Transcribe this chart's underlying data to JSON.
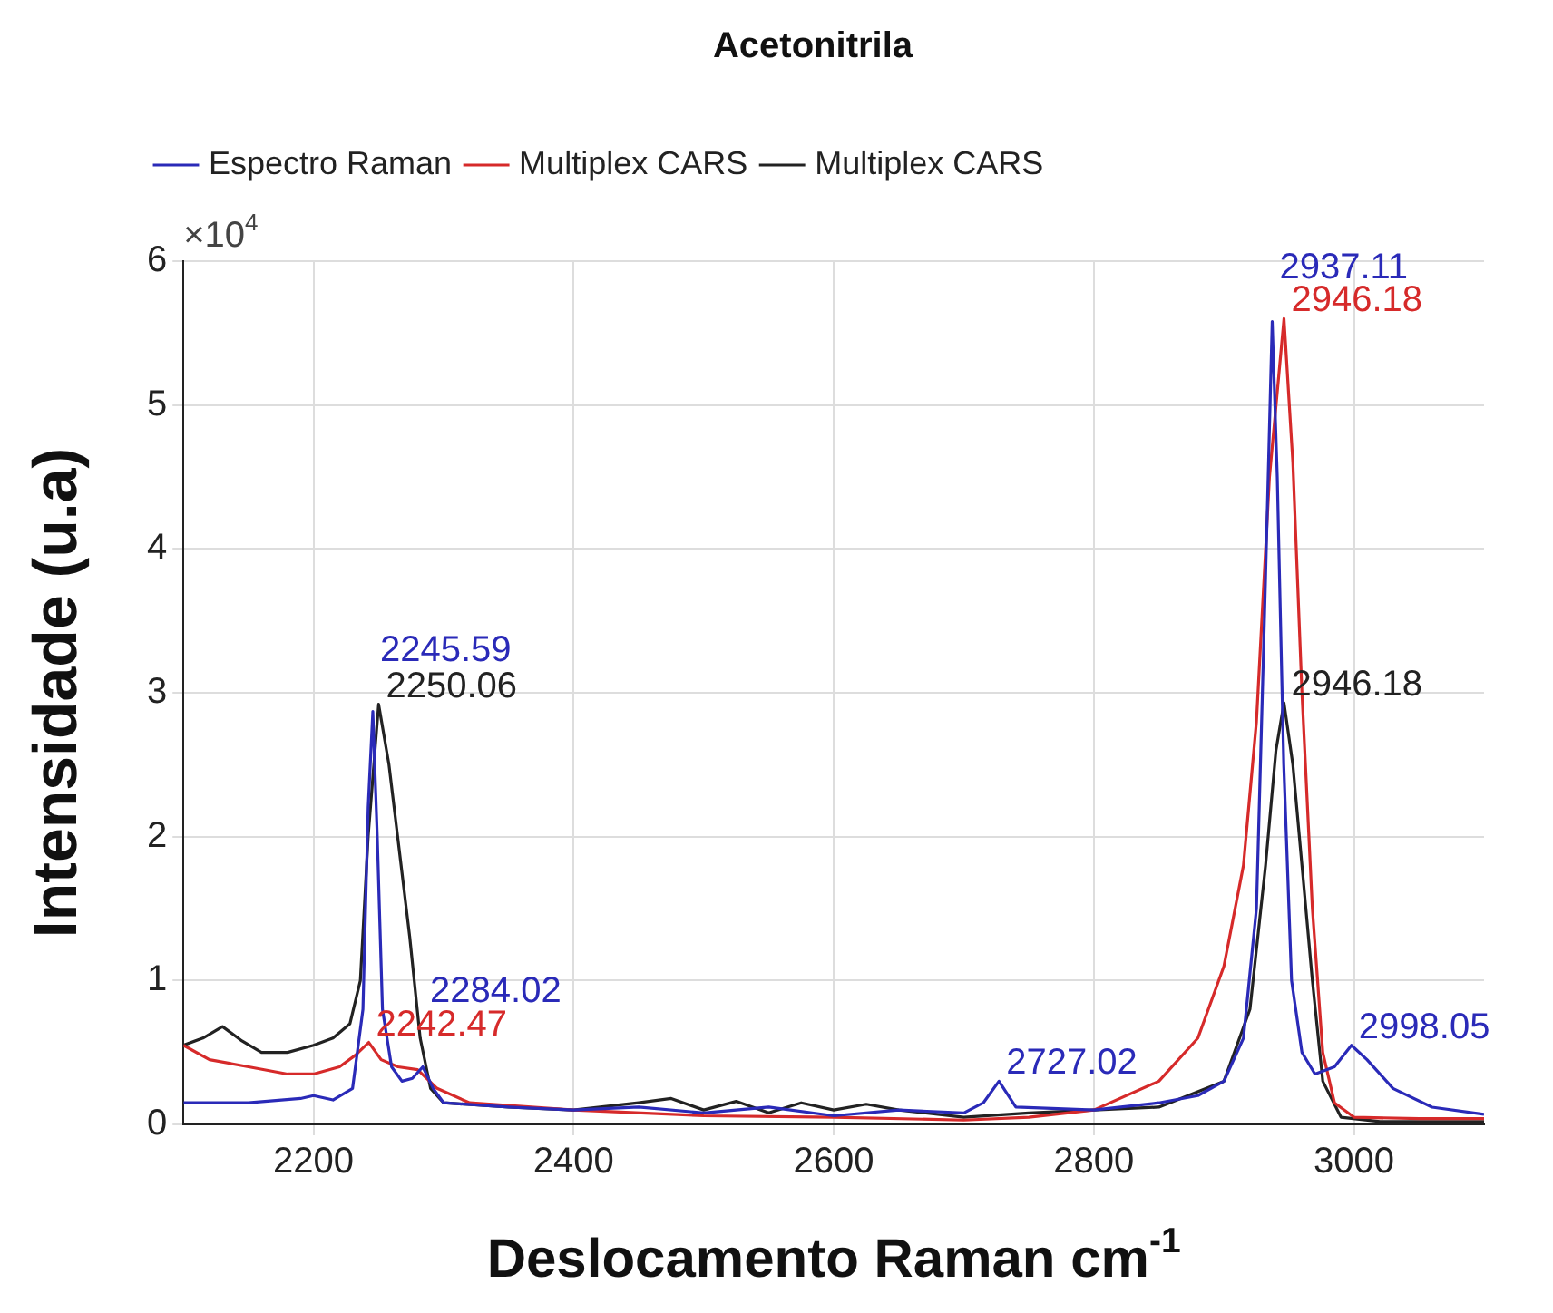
{
  "chart_data": {
    "type": "line",
    "title": "Acetonitrila",
    "xlabel": "Deslocamento Raman cm$^{-1}$",
    "ylabel": "Intensidade (u.a)",
    "xlim": [
      2100,
      3100
    ],
    "xticks": [
      2200,
      2400,
      2600,
      2800,
      3000
    ],
    "ylim": [
      0,
      6
    ],
    "yticks": [
      0,
      1,
      2,
      3,
      4,
      5,
      6
    ],
    "grid": true,
    "legend": "top left",
    "marker": "none",
    "line_style": "solid",
    "series": [
      {
        "name": "Espectro Raman",
        "color": "#2a2ab8",
        "x": [
          2100,
          2150,
          2190,
          2200,
          2215,
          2230,
          2238,
          2242,
          2245.59,
          2249,
          2253,
          2260,
          2268,
          2276,
          2284.02,
          2292,
          2300,
          2350,
          2400,
          2450,
          2500,
          2550,
          2600,
          2650,
          2700,
          2715,
          2727.02,
          2740,
          2800,
          2850,
          2880,
          2900,
          2915,
          2925,
          2932,
          2937.11,
          2941,
          2946,
          2952,
          2960,
          2970,
          2985,
          2998.05,
          3010,
          3030,
          3060,
          3100
        ],
        "values": [
          0.15,
          0.15,
          0.18,
          0.2,
          0.17,
          0.25,
          0.8,
          2.2,
          2.87,
          2.0,
          0.8,
          0.4,
          0.3,
          0.32,
          0.4,
          0.25,
          0.15,
          0.12,
          0.1,
          0.12,
          0.08,
          0.12,
          0.06,
          0.1,
          0.08,
          0.15,
          0.3,
          0.12,
          0.1,
          0.15,
          0.2,
          0.3,
          0.6,
          1.5,
          3.8,
          5.58,
          4.5,
          2.5,
          1.0,
          0.5,
          0.35,
          0.4,
          0.55,
          0.45,
          0.25,
          0.12,
          0.07
        ]
      },
      {
        "name": "Multiplex CARS",
        "color": "#d62a2a",
        "x": [
          2100,
          2120,
          2150,
          2180,
          2200,
          2220,
          2232,
          2242.47,
          2252,
          2265,
          2280,
          2295,
          2320,
          2400,
          2500,
          2600,
          2700,
          2750,
          2800,
          2850,
          2880,
          2900,
          2915,
          2925,
          2935,
          2946.18,
          2953,
          2960,
          2968,
          2976,
          2985,
          3000,
          3050,
          3100
        ],
        "values": [
          0.55,
          0.45,
          0.4,
          0.35,
          0.35,
          0.4,
          0.48,
          0.57,
          0.45,
          0.4,
          0.38,
          0.25,
          0.15,
          0.1,
          0.06,
          0.05,
          0.03,
          0.05,
          0.1,
          0.3,
          0.6,
          1.1,
          1.8,
          2.8,
          4.5,
          5.6,
          4.6,
          3.0,
          1.5,
          0.5,
          0.15,
          0.05,
          0.04,
          0.04
        ]
      },
      {
        "name": "Multiplex CARS",
        "color": "#222222",
        "x": [
          2100,
          2115,
          2130,
          2145,
          2160,
          2180,
          2200,
          2215,
          2228,
          2236,
          2242,
          2250.06,
          2258,
          2266,
          2274,
          2282,
          2290,
          2300,
          2350,
          2400,
          2450,
          2475,
          2500,
          2525,
          2550,
          2575,
          2600,
          2625,
          2650,
          2700,
          2750,
          2800,
          2850,
          2900,
          2920,
          2932,
          2940,
          2946.18,
          2953,
          2960,
          2968,
          2976,
          2990,
          3020,
          3100
        ],
        "values": [
          0.55,
          0.6,
          0.68,
          0.58,
          0.5,
          0.5,
          0.55,
          0.6,
          0.7,
          1.0,
          2.0,
          2.92,
          2.5,
          1.9,
          1.3,
          0.6,
          0.25,
          0.15,
          0.12,
          0.1,
          0.15,
          0.18,
          0.1,
          0.16,
          0.08,
          0.15,
          0.1,
          0.14,
          0.1,
          0.05,
          0.08,
          0.1,
          0.12,
          0.3,
          0.8,
          1.8,
          2.6,
          2.93,
          2.5,
          1.8,
          1.0,
          0.3,
          0.05,
          0.02,
          0.02
        ]
      }
    ],
    "annotations": [
      "×10$^{4}$",
      {
        "text": "2250.06",
        "x": 2250.06,
        "y": 2.92
      },
      {
        "text": "2245.59",
        "x": 2245.59,
        "y": 2.87
      },
      {
        "text": "2242.47",
        "x": 2242.47,
        "y": 0.57
      },
      {
        "text": "2284.02",
        "x": 2284.02,
        "y": 0.4
      },
      {
        "text": "2727.02",
        "x": 2727.02,
        "y": 0.3
      },
      {
        "text": "2946.18",
        "x": 2946.18,
        "y": 5.6
      },
      {
        "text": "2937.11",
        "x": 2937.11,
        "y": 5.58
      },
      {
        "text": "2946.18",
        "x": 2946.18,
        "y": 2.93
      },
      {
        "text": "2998.05",
        "x": 2998.05,
        "y": 0.55
      }
    ]
  }
}
